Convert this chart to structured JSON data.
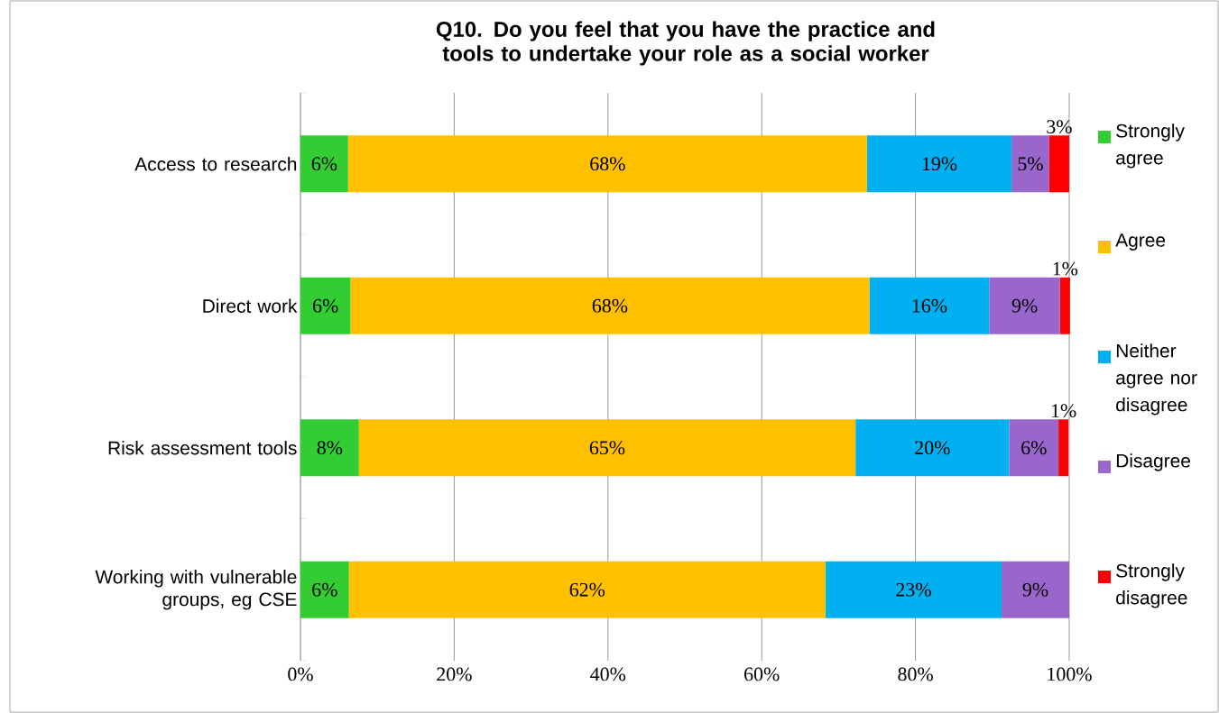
{
  "chart_data": {
    "type": "bar",
    "orientation": "horizontal",
    "stacked": true,
    "title": "Q10. Do you feel that you have the practice and tools to undertake your role as a social worker",
    "categories": [
      "Access to research",
      "Direct work",
      "Risk assessment tools",
      "Working with vulnerable groups, eg CSE"
    ],
    "series": [
      {
        "name": "Strongly agree",
        "color": "#33cc33",
        "values": [
          6.2,
          6.5,
          7.6,
          6.3
        ],
        "value_labels": [
          "6%",
          "6%",
          "8%",
          "6%"
        ]
      },
      {
        "name": "Agree",
        "color": "#ffc000",
        "values": [
          67.5,
          67.5,
          64.6,
          62.0
        ],
        "value_labels": [
          "68%",
          "68%",
          "65%",
          "62%"
        ]
      },
      {
        "name": "Neither agree nor disagree",
        "color": "#00b0f0",
        "values": [
          18.8,
          15.6,
          20.0,
          22.9
        ],
        "value_labels": [
          "19%",
          "16%",
          "20%",
          "23%"
        ]
      },
      {
        "name": "Disagree",
        "color": "#9966cc",
        "values": [
          4.9,
          9.2,
          6.4,
          8.8
        ],
        "value_labels": [
          "5%",
          "9%",
          "6%",
          "9%"
        ]
      },
      {
        "name": "Strongly disagree",
        "color": "#ff0000",
        "values": [
          2.6,
          1.3,
          1.3,
          null
        ],
        "value_labels": [
          "3%",
          "1%",
          "1%",
          null
        ]
      }
    ],
    "xlim": [
      0,
      100
    ],
    "xticks": [
      {
        "value": 0,
        "label": "0%"
      },
      {
        "value": 20,
        "label": "20%"
      },
      {
        "value": 40,
        "label": "40%"
      },
      {
        "value": 60,
        "label": "60%"
      },
      {
        "value": 80,
        "label": "80%"
      },
      {
        "value": 100,
        "label": "100%"
      }
    ],
    "grid": "x",
    "legend": "right"
  }
}
